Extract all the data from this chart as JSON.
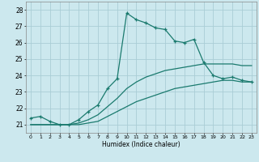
{
  "xlabel": "Humidex (Indice chaleur)",
  "ylabel": "",
  "bg_color": "#cce8ee",
  "grid_color": "#aacdd6",
  "line_color": "#1a7a6e",
  "xlim": [
    -0.5,
    23.5
  ],
  "ylim": [
    20.5,
    28.5
  ],
  "xticks": [
    0,
    1,
    2,
    3,
    4,
    5,
    6,
    7,
    8,
    9,
    10,
    11,
    12,
    13,
    14,
    15,
    16,
    17,
    18,
    19,
    20,
    21,
    22,
    23
  ],
  "yticks": [
    21,
    22,
    23,
    24,
    25,
    26,
    27,
    28
  ],
  "series1_x": [
    0,
    1,
    2,
    3,
    4,
    5,
    6,
    7,
    8,
    9,
    10,
    11,
    12,
    13,
    14,
    15,
    16,
    17,
    18,
    19,
    20,
    21,
    22,
    23
  ],
  "series1_y": [
    21.4,
    21.5,
    21.2,
    21.0,
    21.0,
    21.3,
    21.8,
    22.2,
    23.2,
    23.8,
    27.8,
    27.4,
    27.2,
    26.9,
    26.8,
    26.1,
    26.0,
    26.2,
    24.8,
    24.0,
    23.8,
    23.9,
    23.7,
    23.6
  ],
  "series2_x": [
    0,
    1,
    2,
    3,
    4,
    5,
    6,
    7,
    8,
    9,
    10,
    11,
    12,
    13,
    14,
    15,
    16,
    17,
    18,
    19,
    20,
    21,
    22,
    23
  ],
  "series2_y": [
    21.0,
    21.0,
    21.0,
    21.0,
    21.0,
    21.1,
    21.3,
    21.6,
    22.1,
    22.6,
    23.2,
    23.6,
    23.9,
    24.1,
    24.3,
    24.4,
    24.5,
    24.6,
    24.7,
    24.7,
    24.7,
    24.7,
    24.6,
    24.6
  ],
  "series3_x": [
    0,
    1,
    2,
    3,
    4,
    5,
    6,
    7,
    8,
    9,
    10,
    11,
    12,
    13,
    14,
    15,
    16,
    17,
    18,
    19,
    20,
    21,
    22,
    23
  ],
  "series3_y": [
    21.0,
    21.0,
    21.0,
    21.0,
    21.0,
    21.0,
    21.1,
    21.2,
    21.5,
    21.8,
    22.1,
    22.4,
    22.6,
    22.8,
    23.0,
    23.2,
    23.3,
    23.4,
    23.5,
    23.6,
    23.7,
    23.7,
    23.6,
    23.6
  ]
}
